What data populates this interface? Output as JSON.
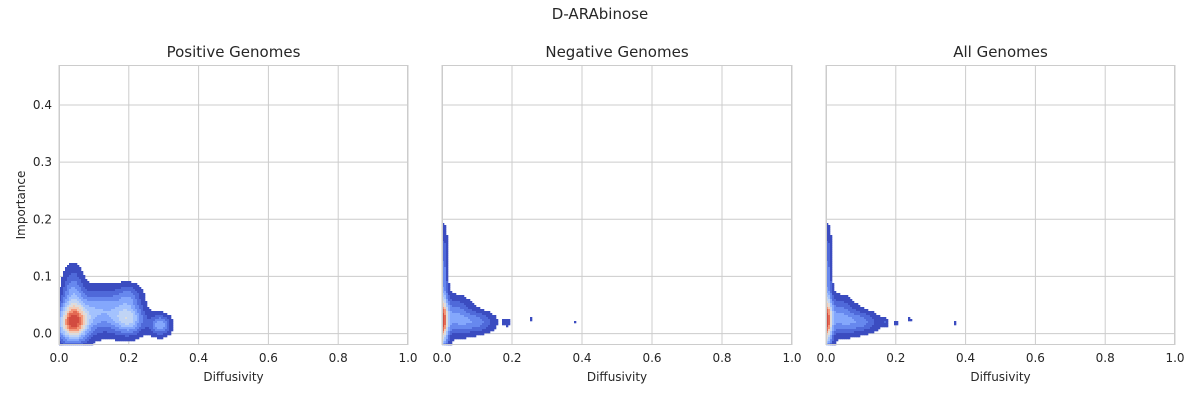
{
  "figure": {
    "suptitle": "D-ARAbinose",
    "background": "#ffffff",
    "axes_face": "#ffffff",
    "grid_color": "#cccccc",
    "spine_color": "#cccccc",
    "text_color": "#262626"
  },
  "chart_data": [
    {
      "type": "contour",
      "title": "Positive Genomes",
      "xlabel": "Diffusivity",
      "ylabel": "Importance",
      "xlim": [
        0.0,
        1.0
      ],
      "ylim": [
        -0.02,
        0.47
      ],
      "xticks": [
        "0.0",
        "0.2",
        "0.4",
        "0.6",
        "0.8",
        "1.0"
      ],
      "yticks": [
        "0.0",
        "0.1",
        "0.2",
        "0.3",
        "0.4"
      ],
      "grid": true,
      "colormap": [
        "#3b4cc0",
        "#4f69d9",
        "#6788ee",
        "#84a7fc",
        "#a3c2fe",
        "#c0d4f5",
        "#dddcdc",
        "#f2cbb7",
        "#f4987a",
        "#e36a53",
        "#d24b40"
      ],
      "density_peaks": [
        {
          "x": 0.04,
          "y": 0.018,
          "sx": 0.03,
          "sy": 0.022,
          "w": 1.0
        },
        {
          "x": 0.04,
          "y": 0.07,
          "sx": 0.02,
          "sy": 0.03,
          "w": 0.35
        },
        {
          "x": 0.12,
          "y": 0.04,
          "sx": 0.05,
          "sy": 0.025,
          "w": 0.45
        },
        {
          "x": 0.2,
          "y": 0.025,
          "sx": 0.03,
          "sy": 0.018,
          "w": 0.55
        },
        {
          "x": 0.2,
          "y": 0.065,
          "sx": 0.025,
          "sy": 0.015,
          "w": 0.25
        },
        {
          "x": 0.29,
          "y": 0.015,
          "sx": 0.02,
          "sy": 0.012,
          "w": 0.45
        }
      ]
    },
    {
      "type": "contour",
      "title": "Negative Genomes",
      "xlabel": "Diffusivity",
      "ylabel": "",
      "xlim": [
        0.0,
        1.0
      ],
      "ylim": [
        -0.02,
        0.47
      ],
      "xticks": [
        "0.0",
        "0.2",
        "0.4",
        "0.6",
        "0.8",
        "1.0"
      ],
      "yticks": [],
      "grid": true,
      "colormap": [
        "#3b4cc0",
        "#4f69d9",
        "#6788ee",
        "#84a7fc",
        "#a3c2fe",
        "#c0d4f5",
        "#dddcdc",
        "#f2cbb7",
        "#f4987a",
        "#e36a53",
        "#d24b40"
      ],
      "density_peaks": [
        {
          "x": 0.0,
          "y": 0.02,
          "sx": 0.012,
          "sy": 0.03,
          "w": 1.0
        },
        {
          "x": 0.005,
          "y": 0.11,
          "sx": 0.008,
          "sy": 0.05,
          "w": 0.3
        },
        {
          "x": 0.04,
          "y": 0.03,
          "sx": 0.03,
          "sy": 0.022,
          "w": 0.35
        },
        {
          "x": 0.1,
          "y": 0.02,
          "sx": 0.035,
          "sy": 0.013,
          "w": 0.3
        },
        {
          "x": 0.185,
          "y": 0.02,
          "sx": 0.008,
          "sy": 0.005,
          "w": 0.15
        },
        {
          "x": 0.255,
          "y": 0.025,
          "sx": 0.004,
          "sy": 0.004,
          "w": 0.12
        },
        {
          "x": 0.38,
          "y": 0.02,
          "sx": 0.003,
          "sy": 0.003,
          "w": 0.1
        },
        {
          "x": 0.335,
          "y": 0.015,
          "sx": 0.002,
          "sy": 0.003,
          "w": 0.08
        }
      ]
    },
    {
      "type": "contour",
      "title": "All Genomes",
      "xlabel": "Diffusivity",
      "ylabel": "",
      "xlim": [
        0.0,
        1.0
      ],
      "ylim": [
        -0.02,
        0.47
      ],
      "xticks": [
        "0.0",
        "0.2",
        "0.4",
        "0.6",
        "0.8",
        "1.0"
      ],
      "yticks": [],
      "grid": true,
      "colormap": [
        "#3b4cc0",
        "#4f69d9",
        "#6788ee",
        "#84a7fc",
        "#a3c2fe",
        "#c0d4f5",
        "#dddcdc",
        "#f2cbb7",
        "#f4987a",
        "#e36a53",
        "#d24b40"
      ],
      "density_peaks": [
        {
          "x": 0.0,
          "y": 0.02,
          "sx": 0.012,
          "sy": 0.03,
          "w": 1.0
        },
        {
          "x": 0.005,
          "y": 0.11,
          "sx": 0.008,
          "sy": 0.05,
          "w": 0.3
        },
        {
          "x": 0.04,
          "y": 0.03,
          "sx": 0.03,
          "sy": 0.022,
          "w": 0.35
        },
        {
          "x": 0.1,
          "y": 0.02,
          "sx": 0.035,
          "sy": 0.013,
          "w": 0.3
        },
        {
          "x": 0.17,
          "y": 0.02,
          "sx": 0.007,
          "sy": 0.005,
          "w": 0.15
        },
        {
          "x": 0.2,
          "y": 0.018,
          "sx": 0.005,
          "sy": 0.004,
          "w": 0.12
        },
        {
          "x": 0.24,
          "y": 0.025,
          "sx": 0.004,
          "sy": 0.004,
          "w": 0.12
        },
        {
          "x": 0.37,
          "y": 0.018,
          "sx": 0.003,
          "sy": 0.003,
          "w": 0.1
        }
      ]
    }
  ]
}
